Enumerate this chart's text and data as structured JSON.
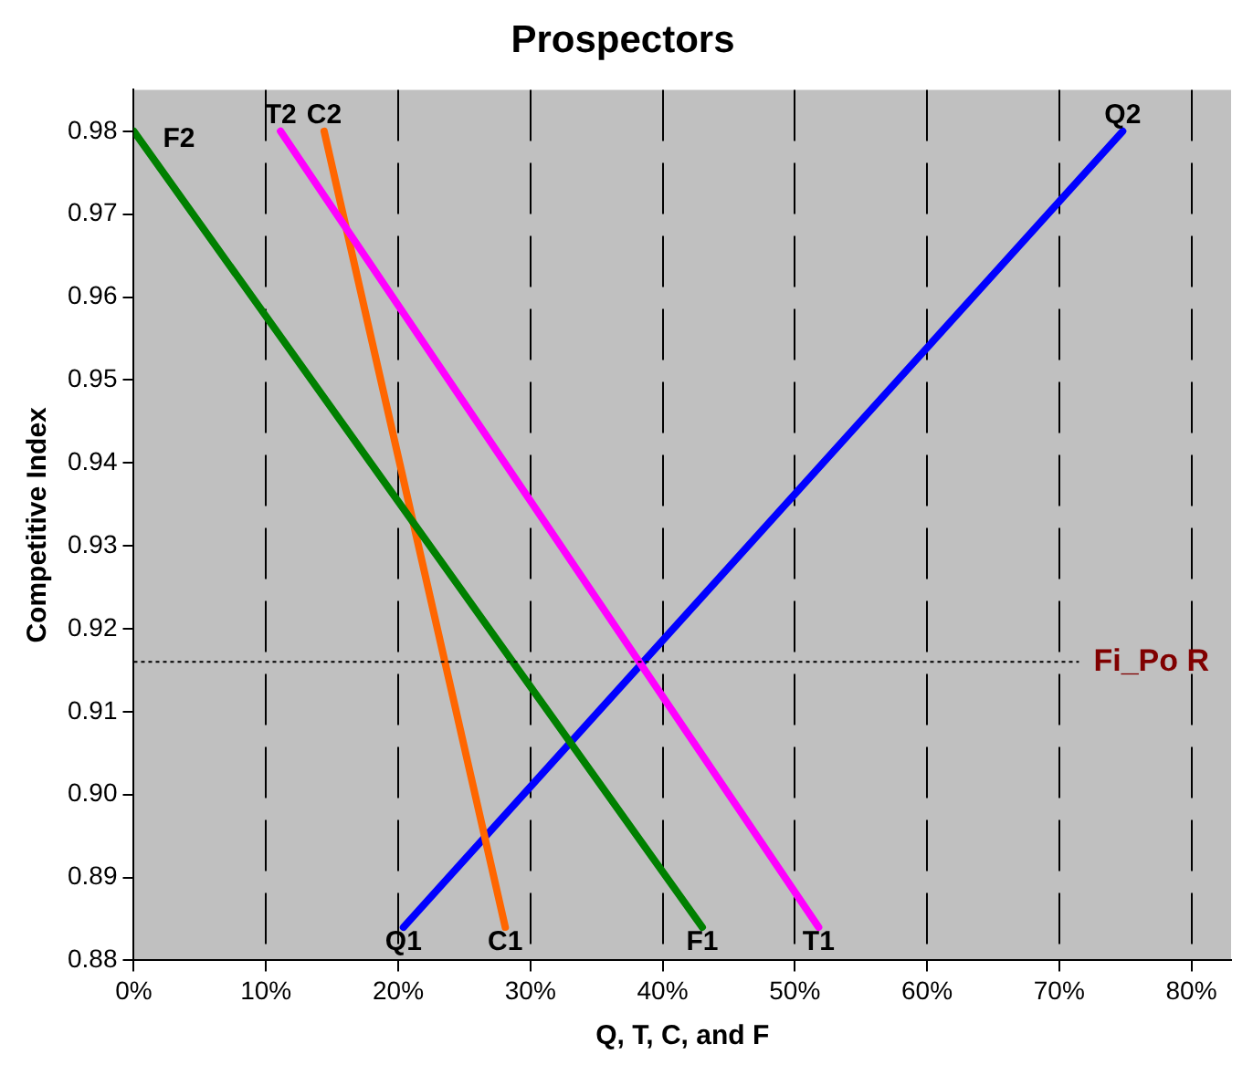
{
  "chart_data": {
    "type": "line",
    "title": "Prospectors",
    "xlabel": "Q, T, C, and F",
    "ylabel": "Competitive Index",
    "xlim": [
      0,
      83
    ],
    "xticks": [
      {
        "value": 0,
        "label": "0%"
      },
      {
        "value": 10,
        "label": "10%"
      },
      {
        "value": 20,
        "label": "20%"
      },
      {
        "value": 30,
        "label": "30%"
      },
      {
        "value": 40,
        "label": "40%"
      },
      {
        "value": 50,
        "label": "50%"
      },
      {
        "value": 60,
        "label": "60%"
      },
      {
        "value": 70,
        "label": "70%"
      },
      {
        "value": 80,
        "label": "80%"
      }
    ],
    "ylim": [
      0.88,
      0.985
    ],
    "yticks": [
      0.88,
      0.89,
      {
        "value": 0.9,
        "label": "0.90"
      },
      0.91,
      0.92,
      0.93,
      0.94,
      0.95,
      0.96,
      0.97,
      0.98
    ],
    "grid": "x",
    "legend": false,
    "marker": "none",
    "line_style": "solid",
    "series": [
      {
        "color": "#008000",
        "x": [
          0,
          43.0
        ],
        "values": [
          0.98,
          0.884
        ]
      },
      {
        "color": "#ff00ff",
        "x": [
          11.1,
          51.8
        ],
        "values": [
          0.98,
          0.884
        ]
      },
      {
        "color": "#ff6600",
        "x": [
          14.4,
          28.1
        ],
        "values": [
          0.98,
          0.884
        ]
      },
      {
        "color": "#0000ff",
        "x": [
          20.4,
          74.8
        ],
        "values": [
          0.884,
          0.98
        ]
      }
    ],
    "ref_lines": [
      {
        "axis": "y",
        "value": 0.916,
        "label": "Fi_Po R",
        "line_style": "dotted"
      }
    ],
    "annotations": [
      {
        "text": "F2",
        "x": 0,
        "y": 0.98
      },
      {
        "text": "T2",
        "x": 11.1,
        "y": 0.98
      },
      {
        "text": "C2",
        "x": 14.4,
        "y": 0.98
      },
      {
        "text": "Q2",
        "x": 74.8,
        "y": 0.98
      },
      {
        "text": "Q1",
        "x": 20.4,
        "y": 0.884
      },
      {
        "text": "C1",
        "x": 28.1,
        "y": 0.884
      },
      {
        "text": "F1",
        "x": 43.0,
        "y": 0.884
      },
      {
        "text": "T1",
        "x": 51.8,
        "y": 0.884
      }
    ]
  }
}
